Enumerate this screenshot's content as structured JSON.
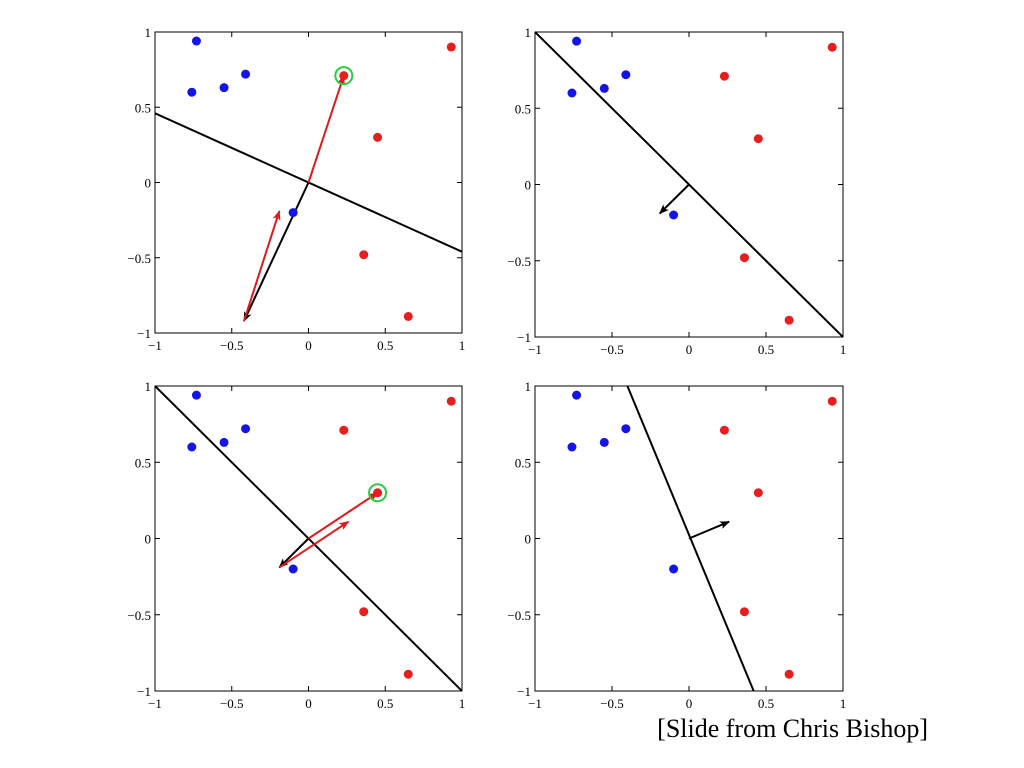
{
  "credit": "[Slide from Chris Bishop]",
  "colors": {
    "class_a": "#1414e6",
    "class_b": "#e61e1e",
    "boundary": "#000000",
    "update_arrow": "#e01a1a",
    "highlight_ring": "#2ecc40"
  },
  "chart_data": [
    {
      "type": "scatter",
      "title": "",
      "xlabel": "",
      "ylabel": "",
      "xlim": [
        -1,
        1
      ],
      "ylim": [
        -1,
        1
      ],
      "xticks": [
        "−1",
        "−0.5",
        "0",
        "0.5",
        "1"
      ],
      "yticks": [
        "−1",
        "−0.5",
        "0",
        "0.5",
        "1"
      ],
      "grid": false,
      "series": [
        {
          "color": "blue",
          "points": [
            [
              -0.73,
              0.94
            ],
            [
              -0.76,
              0.6
            ],
            [
              -0.55,
              0.63
            ],
            [
              -0.41,
              0.72
            ],
            [
              -0.1,
              -0.2
            ]
          ]
        },
        {
          "color": "red",
          "points": [
            [
              0.23,
              0.71
            ],
            [
              0.93,
              0.9
            ],
            [
              0.45,
              0.3
            ],
            [
              0.36,
              -0.48
            ],
            [
              0.65,
              -0.89
            ]
          ]
        }
      ],
      "boundary_line": [
        [
          -1,
          0.46
        ],
        [
          1,
          -0.46
        ]
      ],
      "weight_arrows": [
        {
          "color": "black",
          "from": [
            0,
            0
          ],
          "to": [
            -0.42,
            -0.92
          ]
        },
        {
          "color": "red",
          "from": [
            0,
            0
          ],
          "to": [
            0.23,
            0.71
          ]
        },
        {
          "color": "red",
          "from": [
            -0.42,
            -0.92
          ],
          "to": [
            -0.19,
            -0.19
          ]
        }
      ],
      "highlighted_point": [
        0.23,
        0.71
      ]
    },
    {
      "type": "scatter",
      "title": "",
      "xlabel": "",
      "ylabel": "",
      "xlim": [
        -1,
        1
      ],
      "ylim": [
        -1,
        1
      ],
      "xticks": [
        "−1",
        "−0.5",
        "0",
        "0.5",
        "1"
      ],
      "yticks": [
        "−1",
        "−0.5",
        "0",
        "0.5",
        "1"
      ],
      "grid": false,
      "series": [
        {
          "color": "blue",
          "points": [
            [
              -0.73,
              0.94
            ],
            [
              -0.76,
              0.6
            ],
            [
              -0.55,
              0.63
            ],
            [
              -0.41,
              0.72
            ],
            [
              -0.1,
              -0.2
            ]
          ]
        },
        {
          "color": "red",
          "points": [
            [
              0.23,
              0.71
            ],
            [
              0.93,
              0.9
            ],
            [
              0.45,
              0.3
            ],
            [
              0.36,
              -0.48
            ],
            [
              0.65,
              -0.89
            ]
          ]
        }
      ],
      "boundary_line": [
        [
          -1,
          1
        ],
        [
          1,
          -1
        ]
      ],
      "weight_arrows": [
        {
          "color": "black",
          "from": [
            0,
            0
          ],
          "to": [
            -0.19,
            -0.19
          ]
        }
      ],
      "highlighted_point": null
    },
    {
      "type": "scatter",
      "title": "",
      "xlabel": "",
      "ylabel": "",
      "xlim": [
        -1,
        1
      ],
      "ylim": [
        -1,
        1
      ],
      "xticks": [
        "−1",
        "−0.5",
        "0",
        "0.5",
        "1"
      ],
      "yticks": [
        "−1",
        "−0.5",
        "0",
        "0.5",
        "1"
      ],
      "grid": false,
      "series": [
        {
          "color": "blue",
          "points": [
            [
              -0.73,
              0.94
            ],
            [
              -0.76,
              0.6
            ],
            [
              -0.55,
              0.63
            ],
            [
              -0.41,
              0.72
            ],
            [
              -0.1,
              -0.2
            ]
          ]
        },
        {
          "color": "red",
          "points": [
            [
              0.23,
              0.71
            ],
            [
              0.93,
              0.9
            ],
            [
              0.45,
              0.3
            ],
            [
              0.36,
              -0.48
            ],
            [
              0.65,
              -0.89
            ]
          ]
        }
      ],
      "boundary_line": [
        [
          -1,
          1
        ],
        [
          1,
          -1
        ]
      ],
      "weight_arrows": [
        {
          "color": "black",
          "from": [
            0,
            0
          ],
          "to": [
            -0.19,
            -0.19
          ]
        },
        {
          "color": "red",
          "from": [
            0,
            0
          ],
          "to": [
            0.45,
            0.3
          ]
        },
        {
          "color": "red",
          "from": [
            -0.19,
            -0.19
          ],
          "to": [
            0.26,
            0.11
          ]
        }
      ],
      "highlighted_point": [
        0.45,
        0.3
      ]
    },
    {
      "type": "scatter",
      "title": "",
      "xlabel": "",
      "ylabel": "",
      "xlim": [
        -1,
        1
      ],
      "ylim": [
        -1,
        1
      ],
      "xticks": [
        "−1",
        "−0.5",
        "0",
        "0.5",
        "1"
      ],
      "yticks": [
        "−1",
        "−0.5",
        "0",
        "0.5",
        "1"
      ],
      "grid": false,
      "series": [
        {
          "color": "blue",
          "points": [
            [
              -0.73,
              0.94
            ],
            [
              -0.76,
              0.6
            ],
            [
              -0.55,
              0.63
            ],
            [
              -0.41,
              0.72
            ],
            [
              -0.1,
              -0.2
            ]
          ]
        },
        {
          "color": "red",
          "points": [
            [
              0.23,
              0.71
            ],
            [
              0.93,
              0.9
            ],
            [
              0.45,
              0.3
            ],
            [
              0.36,
              -0.48
            ],
            [
              0.65,
              -0.89
            ]
          ]
        }
      ],
      "boundary_line": [
        [
          -0.4,
          1
        ],
        [
          0.42,
          -1
        ]
      ],
      "weight_arrows": [
        {
          "color": "black",
          "from": [
            0,
            0
          ],
          "to": [
            0.26,
            0.11
          ]
        }
      ],
      "highlighted_point": null
    }
  ]
}
